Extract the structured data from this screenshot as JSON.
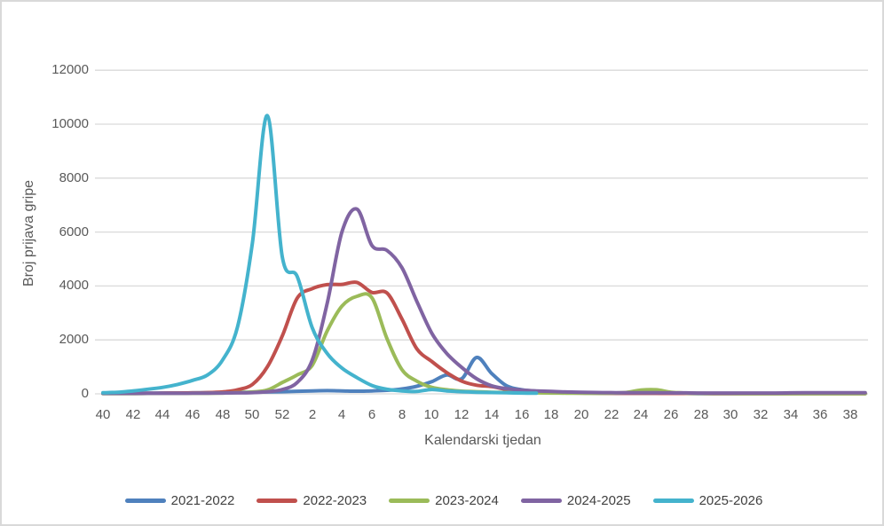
{
  "chart_data": {
    "type": "line",
    "title": "",
    "xlabel": "Kalendarski tjedan",
    "ylabel": "Broj prijava gripe",
    "x_categories": [
      "40",
      "41",
      "42",
      "43",
      "44",
      "45",
      "46",
      "47",
      "48",
      "49",
      "50",
      "51",
      "52",
      "1",
      "2",
      "3",
      "4",
      "5",
      "6",
      "7",
      "8",
      "9",
      "10",
      "11",
      "12",
      "13",
      "14",
      "15",
      "16",
      "17",
      "18",
      "19",
      "20",
      "21",
      "22",
      "23",
      "24",
      "25",
      "26",
      "27",
      "28",
      "29",
      "30",
      "31",
      "32",
      "33",
      "34",
      "35",
      "36",
      "37",
      "38",
      "39"
    ],
    "x_tick_labels": [
      "40",
      "42",
      "44",
      "46",
      "48",
      "50",
      "52",
      "2",
      "4",
      "6",
      "8",
      "10",
      "12",
      "14",
      "16",
      "18",
      "20",
      "22",
      "24",
      "26",
      "28",
      "30",
      "32",
      "34",
      "36",
      "38"
    ],
    "y_ticks": [
      0,
      2000,
      4000,
      6000,
      8000,
      10000,
      12000
    ],
    "ylim": [
      0,
      12000
    ],
    "grid": "horizontal",
    "legend_position": "bottom",
    "gridline_color": "#d9d9d9",
    "axis_line_color": "#d9d9d9",
    "tick_text_color": "#595959",
    "legend_text_color": "#404040",
    "frame_border_color": "#d9d9d9",
    "series": [
      {
        "name": "2021-2022",
        "color": "#4F81BD",
        "values": [
          20,
          20,
          25,
          25,
          30,
          30,
          35,
          40,
          45,
          55,
          60,
          70,
          80,
          95,
          110,
          120,
          110,
          100,
          110,
          130,
          180,
          280,
          450,
          700,
          560,
          1350,
          760,
          300,
          150,
          100,
          70,
          50,
          40,
          30,
          25,
          20,
          20,
          20,
          15,
          15,
          10,
          10,
          10,
          10,
          10,
          10,
          10,
          10,
          10,
          10,
          10,
          10
        ]
      },
      {
        "name": "2022-2023",
        "color": "#C0504D",
        "values": [
          15,
          15,
          20,
          20,
          25,
          30,
          35,
          45,
          70,
          150,
          350,
          1000,
          2150,
          3550,
          3900,
          4050,
          4060,
          4130,
          3760,
          3740,
          2780,
          1670,
          1200,
          790,
          470,
          320,
          270,
          160,
          90,
          60,
          45,
          35,
          30,
          25,
          20,
          20,
          20,
          20,
          15,
          15,
          15,
          10,
          10,
          10,
          10,
          10,
          10,
          10,
          10,
          10,
          10,
          10
        ]
      },
      {
        "name": "2023-2024",
        "color": "#9BBB59",
        "values": [
          10,
          10,
          10,
          15,
          15,
          15,
          20,
          20,
          30,
          45,
          70,
          140,
          420,
          700,
          1060,
          2330,
          3260,
          3620,
          3560,
          2050,
          900,
          470,
          240,
          150,
          100,
          80,
          60,
          50,
          40,
          35,
          30,
          25,
          25,
          20,
          30,
          50,
          140,
          150,
          60,
          30,
          20,
          15,
          15,
          10,
          10,
          10,
          10,
          10,
          10,
          10,
          10,
          10
        ]
      },
      {
        "name": "2024-2025",
        "color": "#8064A2",
        "values": [
          15,
          15,
          15,
          20,
          20,
          20,
          25,
          25,
          30,
          35,
          45,
          80,
          160,
          420,
          1250,
          3350,
          6020,
          6850,
          5500,
          5320,
          4680,
          3430,
          2250,
          1500,
          980,
          560,
          300,
          190,
          140,
          110,
          90,
          70,
          60,
          50,
          45,
          40,
          40,
          40,
          35,
          35,
          30,
          30,
          30,
          30,
          30,
          30,
          35,
          40,
          40,
          40,
          40,
          40
        ]
      },
      {
        "name": "2025-2026",
        "color": "#44B3CD",
        "values": [
          40,
          60,
          110,
          170,
          240,
          350,
          500,
          700,
          1250,
          2480,
          5600,
          10320,
          5070,
          4350,
          2450,
          1500,
          950,
          600,
          310,
          170,
          110,
          90,
          160,
          110,
          80,
          60,
          50,
          40,
          30,
          25,
          null,
          null,
          null,
          null,
          null,
          null,
          null,
          null,
          null,
          null,
          null,
          null,
          null,
          null,
          null,
          null,
          null,
          null,
          null,
          null,
          null,
          null
        ]
      }
    ]
  }
}
